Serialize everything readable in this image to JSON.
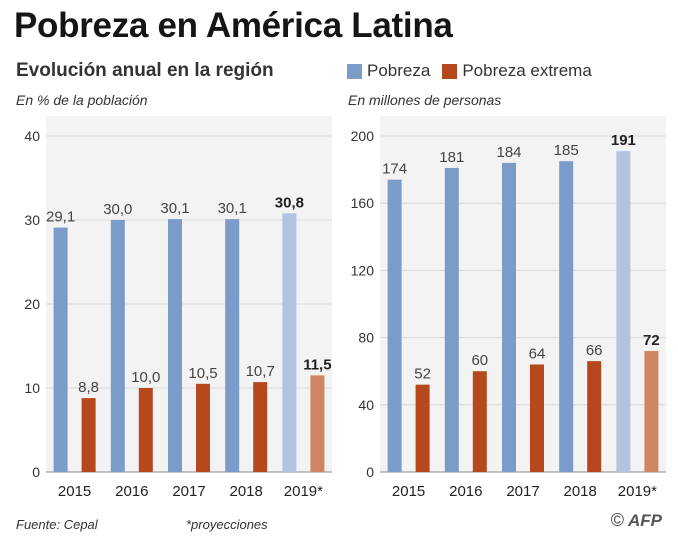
{
  "header": {
    "title": "Pobreza en América Latina",
    "subtitle": "Evolución anual en la región"
  },
  "legend": {
    "items": [
      {
        "label": "Pobreza",
        "color": "#7b9bc9"
      },
      {
        "label": "Pobreza extrema",
        "color": "#b5481d"
      }
    ]
  },
  "colors": {
    "pobreza": "#7b9bc9",
    "pobreza_proj": "#b0c4e0",
    "extrema": "#b5481d",
    "extrema_proj": "#d08562",
    "grid": "#d8d8d8",
    "panel_bg": "#f3f3f3"
  },
  "chart_data": [
    {
      "type": "bar",
      "unit_label": "En % de la población",
      "categories": [
        "2015",
        "2016",
        "2017",
        "2018",
        "2019*"
      ],
      "series": [
        {
          "name": "Pobreza",
          "values": [
            29.1,
            30.0,
            30.1,
            30.1,
            30.8
          ],
          "labels": [
            "29,1",
            "30,0",
            "30,1",
            "30,1",
            "30,8"
          ]
        },
        {
          "name": "Pobreza extrema",
          "values": [
            8.8,
            10.0,
            10.5,
            10.7,
            11.5
          ],
          "labels": [
            "8,8",
            "10,0",
            "10,5",
            "10,7",
            "11,5"
          ]
        }
      ],
      "projected_index": 4,
      "ylim": [
        0,
        40
      ],
      "yticks": [
        0,
        10,
        20,
        30,
        40
      ],
      "ytick_labels": [
        "0",
        "10",
        "20",
        "30",
        "40"
      ],
      "grid": true
    },
    {
      "type": "bar",
      "unit_label": "En millones de personas",
      "categories": [
        "2015",
        "2016",
        "2017",
        "2018",
        "2019*"
      ],
      "series": [
        {
          "name": "Pobreza",
          "values": [
            174,
            181,
            184,
            185,
            191
          ],
          "labels": [
            "174",
            "181",
            "184",
            "185",
            "191"
          ]
        },
        {
          "name": "Pobreza extrema",
          "values": [
            52,
            60,
            64,
            66,
            72
          ],
          "labels": [
            "52",
            "60",
            "64",
            "66",
            "72"
          ]
        }
      ],
      "projected_index": 4,
      "ylim": [
        0,
        200
      ],
      "yticks": [
        0,
        40,
        80,
        120,
        160,
        200
      ],
      "ytick_labels": [
        "0",
        "40",
        "80",
        "120",
        "160",
        "200"
      ],
      "grid": true
    }
  ],
  "footer": {
    "source": "Fuente: Cepal",
    "note": "*proyecciones",
    "copyright": "©",
    "credit": "AFP"
  }
}
